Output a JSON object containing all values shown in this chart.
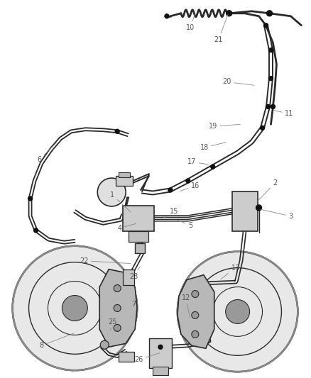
{
  "bg_color": "#ffffff",
  "line_color": "#2a2a2a",
  "label_color": "#555555",
  "label_fontsize": 7.0,
  "fig_width": 4.39,
  "fig_height": 5.33,
  "dpi": 100,
  "tube_lw": 1.5,
  "tube_lw2": 0.8,
  "clamp_r": 0.01,
  "dot_fc": "#111111"
}
